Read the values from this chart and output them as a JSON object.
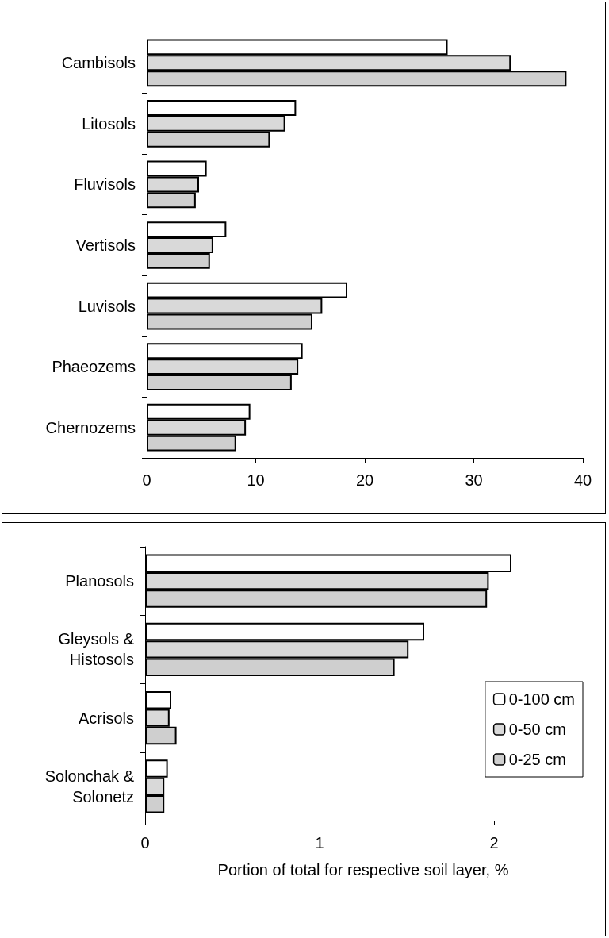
{
  "chart_data": [
    {
      "type": "bar",
      "orientation": "horizontal",
      "categories": [
        "Cambisols",
        "Litosols",
        "Fluvisols",
        "Vertisols",
        "Luvisols",
        "Phaeozems",
        "Chernozems"
      ],
      "series": [
        {
          "color": "#ffffff",
          "values": [
            27.6,
            13.7,
            5.5,
            7.3,
            18.4,
            14.3,
            9.5
          ]
        },
        {
          "color": "#d9d9d9",
          "values": [
            33.4,
            12.7,
            4.8,
            6.1,
            16.1,
            13.9,
            9.1
          ]
        },
        {
          "color": "#cfcfcf",
          "values": [
            38.5,
            11.3,
            4.5,
            5.8,
            15.2,
            13.3,
            8.2
          ]
        }
      ],
      "xlim": [
        0,
        40
      ],
      "xticks": [
        0,
        10,
        20,
        30,
        40
      ],
      "grid": false,
      "legend": false
    },
    {
      "type": "bar",
      "orientation": "horizontal",
      "categories": [
        "Planosols",
        "Gleysols &\nHistosols",
        "Acrisols",
        "Solonchak &\nSolonetz"
      ],
      "series": [
        {
          "name": "0-100 cm",
          "color": "#ffffff",
          "values": [
            2.1,
            1.6,
            0.15,
            0.13
          ]
        },
        {
          "name": "0-50 cm",
          "color": "#d9d9d9",
          "values": [
            1.97,
            1.51,
            0.14,
            0.11
          ]
        },
        {
          "name": "0-25 cm",
          "color": "#cfcfcf",
          "values": [
            1.96,
            1.43,
            0.18,
            0.11
          ]
        }
      ],
      "xlim": [
        0,
        2.5
      ],
      "xticks": [
        0,
        1,
        2
      ],
      "xlabel": "Portion of total for respective soil layer, %",
      "grid": false,
      "legend": "right"
    }
  ]
}
